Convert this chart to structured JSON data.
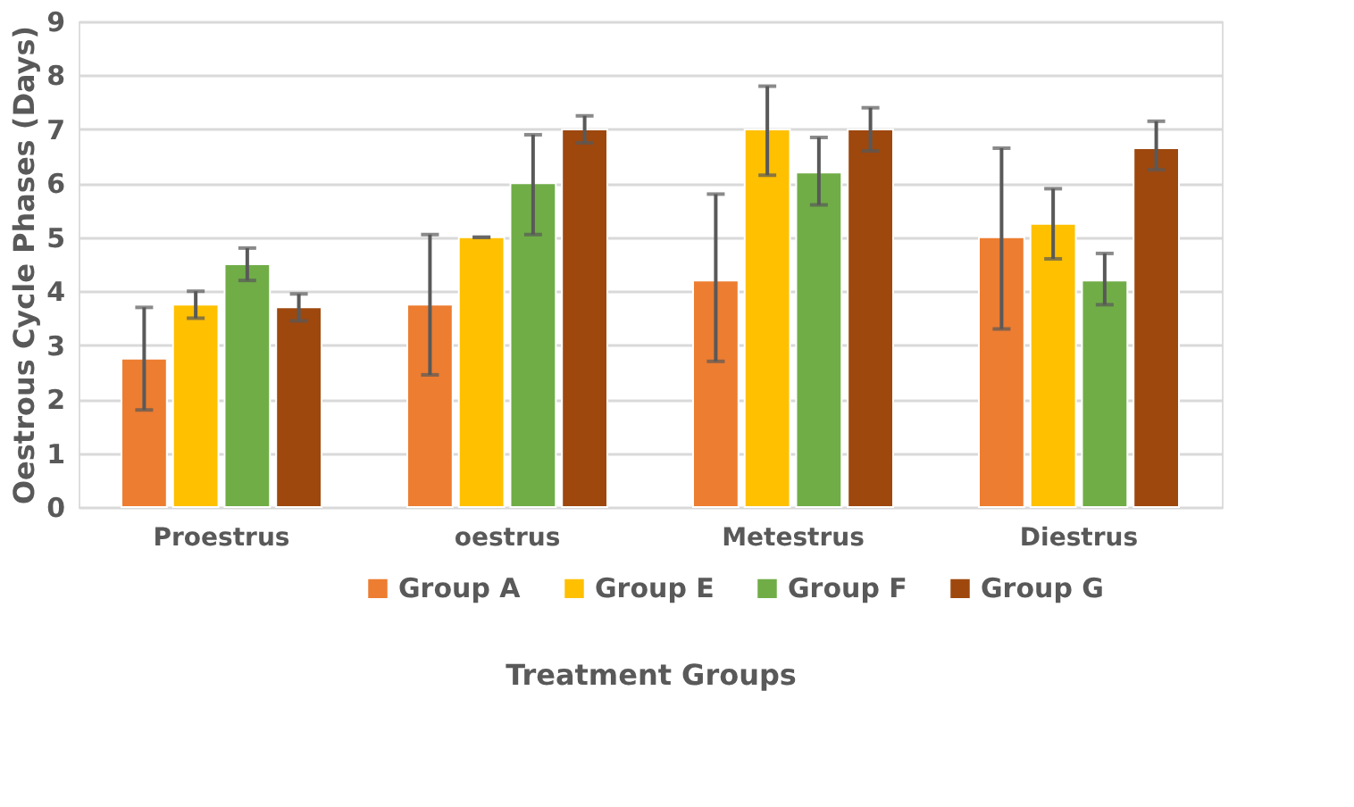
{
  "chart_data": {
    "type": "bar",
    "xlabel": "Treatment Groups",
    "ylabel": "Oestrous Cycle Phases (Days)",
    "categories": [
      "Proestrus",
      "oestrus",
      "Metestrus",
      "Diestrus"
    ],
    "series": [
      {
        "name": "Group A",
        "color": "#ed7d31",
        "values": [
          2.75,
          3.75,
          4.2,
          5.0
        ],
        "errors": [
          [
            1.8,
            3.7
          ],
          [
            2.45,
            5.05
          ],
          [
            2.7,
            5.8
          ],
          [
            3.3,
            6.65
          ]
        ]
      },
      {
        "name": "Group E",
        "color": "#ffc000",
        "values": [
          3.75,
          5.0,
          7.0,
          5.25
        ],
        "errors": [
          [
            3.5,
            4.0
          ],
          0,
          [
            6.15,
            7.8
          ],
          [
            4.6,
            5.9
          ]
        ]
      },
      {
        "name": "Group F",
        "color": "#70ad47",
        "values": [
          4.5,
          6.0,
          6.2,
          4.2
        ],
        "errors": [
          [
            4.2,
            4.8
          ],
          [
            5.05,
            6.9
          ],
          [
            5.6,
            6.85
          ],
          [
            3.75,
            4.7
          ]
        ]
      },
      {
        "name": "Group G",
        "color": "#9e480e",
        "values": [
          3.7,
          7.0,
          7.0,
          6.65
        ],
        "errors": [
          [
            3.45,
            3.95
          ],
          [
            6.75,
            7.25
          ],
          [
            6.6,
            7.4
          ],
          [
            6.25,
            7.15
          ]
        ]
      }
    ],
    "ylim": [
      0,
      9
    ],
    "yticks": [
      0,
      1,
      2,
      3,
      4,
      5,
      6,
      7,
      8,
      9
    ],
    "grid": "y",
    "legend": "bottom"
  }
}
